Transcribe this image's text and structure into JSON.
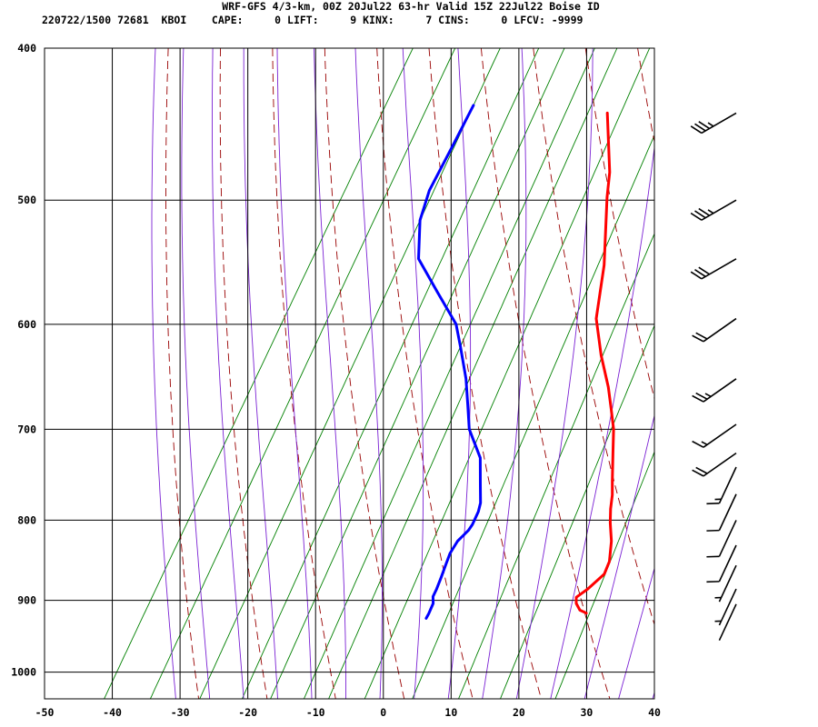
{
  "header": {
    "title": "WRF-GFS 4/3-km, 00Z 20Jul22 63-hr Valid 15Z 22Jul22 Boise ID",
    "subtitle": "220722/1500 72681  KBOI    CAPE:     0 LIFT:     9 KINX:     7 CINS:     0 LFCV: -9999"
  },
  "chart_data": {
    "type": "skew-t",
    "title": "WRF-GFS 4/3-km, 00Z 20Jul22 63-hr Valid 15Z 22Jul22 Boise ID",
    "xlim": [
      -50,
      40
    ],
    "ylim": [
      400,
      1040
    ],
    "y_scale": "log",
    "x_ticks": [
      -50,
      -40,
      -30,
      -20,
      -10,
      0,
      10,
      20,
      30,
      40
    ],
    "x_tick_labels": [
      "-50",
      "-40",
      "-30",
      "-20",
      "-10",
      "0",
      "10",
      "20",
      "30",
      "40"
    ],
    "y_ticks": [
      400,
      500,
      600,
      700,
      800,
      900,
      1000
    ],
    "y_tick_labels": [
      "400",
      "500",
      "600",
      "700",
      "800",
      "900",
      "1000"
    ],
    "grid": true,
    "colors": {
      "temperature": "#ff0000",
      "dewpoint": "#0000ff",
      "dry_adiabat": "#990000",
      "moist_adiabat": "#7b22d4",
      "mixing_ratio": "#008000",
      "grid": "#000000"
    },
    "series": [
      {
        "key": "temperature",
        "points": [
          [
            -15.8,
            440
          ],
          [
            -10.5,
            480
          ],
          [
            -8.8,
            498
          ],
          [
            -3.6,
            550
          ],
          [
            -0.3,
            595
          ],
          [
            3.5,
            628
          ],
          [
            7.2,
            658
          ],
          [
            9.5,
            680
          ],
          [
            11.5,
            700
          ],
          [
            13.4,
            725
          ],
          [
            15.6,
            755
          ],
          [
            16.8,
            771
          ],
          [
            17.7,
            787
          ],
          [
            18.8,
            803
          ],
          [
            20.5,
            825
          ],
          [
            21.9,
            850
          ],
          [
            22.2,
            866
          ],
          [
            21.0,
            885
          ],
          [
            20.0,
            896
          ],
          [
            20.5,
            904
          ],
          [
            21.6,
            913
          ],
          [
            22.8,
            917
          ]
        ]
      },
      {
        "key": "dewpoint",
        "points": [
          [
            -36.2,
            435
          ],
          [
            -35.9,
            460
          ],
          [
            -35.6,
            493
          ],
          [
            -34.5,
            515
          ],
          [
            -31.5,
            545
          ],
          [
            -26.0,
            572
          ],
          [
            -20.5,
            600
          ],
          [
            -18.0,
            620
          ],
          [
            -14.5,
            650
          ],
          [
            -12.0,
            676
          ],
          [
            -9.8,
            700
          ],
          [
            -5.8,
            730
          ],
          [
            -3.5,
            760
          ],
          [
            -2.0,
            780
          ],
          [
            -1.6,
            790
          ],
          [
            -1.4,
            805
          ],
          [
            -1.5,
            812
          ],
          [
            -2.2,
            825
          ],
          [
            -2.3,
            840
          ],
          [
            -2.0,
            853
          ],
          [
            -1.6,
            870
          ],
          [
            -1.3,
            885
          ],
          [
            -1.2,
            895
          ],
          [
            -0.6,
            904
          ],
          [
            -0.4,
            918
          ],
          [
            -0.4,
            924
          ]
        ]
      }
    ],
    "wind_barbs": [
      {
        "pressure": 440,
        "direction": 240,
        "speed_kt": 35
      },
      {
        "pressure": 500,
        "direction": 240,
        "speed_kt": 35
      },
      {
        "pressure": 545,
        "direction": 240,
        "speed_kt": 30
      },
      {
        "pressure": 595,
        "direction": 235,
        "speed_kt": 20
      },
      {
        "pressure": 650,
        "direction": 235,
        "speed_kt": 25
      },
      {
        "pressure": 695,
        "direction": 235,
        "speed_kt": 15
      },
      {
        "pressure": 725,
        "direction": 235,
        "speed_kt": 20
      },
      {
        "pressure": 740,
        "direction": 205,
        "speed_kt": 15
      },
      {
        "pressure": 770,
        "direction": 205,
        "speed_kt": 10
      },
      {
        "pressure": 800,
        "direction": 205,
        "speed_kt": 10
      },
      {
        "pressure": 830,
        "direction": 205,
        "speed_kt": 10
      },
      {
        "pressure": 855,
        "direction": 205,
        "speed_kt": 5
      },
      {
        "pressure": 885,
        "direction": 205,
        "speed_kt": 5
      },
      {
        "pressure": 905,
        "direction": 205,
        "speed_kt": 0
      }
    ]
  }
}
